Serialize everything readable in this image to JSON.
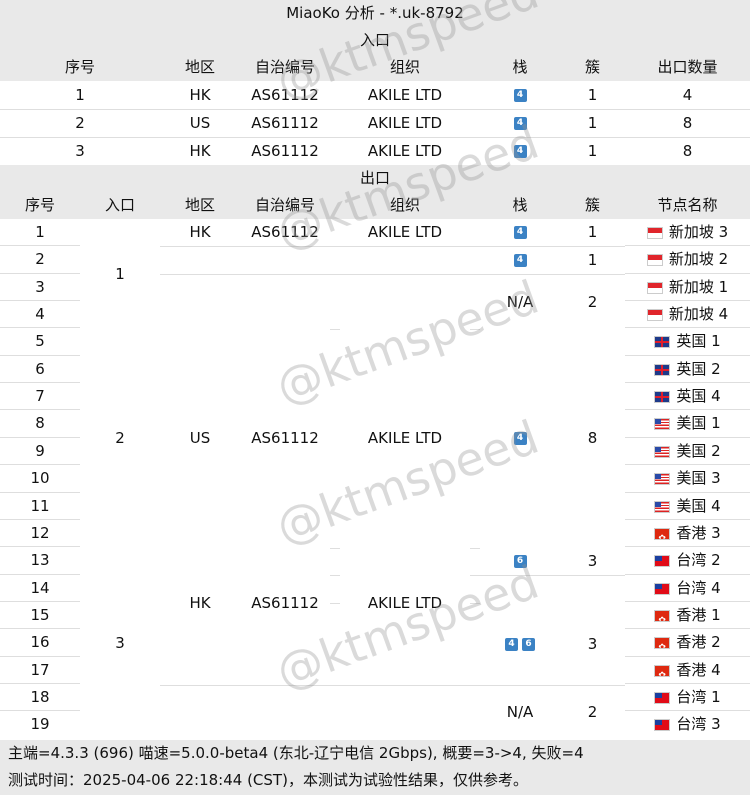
{
  "title": "MiaoKo 分析 - *.uk-8792",
  "entry_section": "入口",
  "exit_section": "出口",
  "entry_headers": [
    "序号",
    "地区",
    "自治编号",
    "组织",
    "栈",
    "簇",
    "出口数量"
  ],
  "entry_rows": [
    {
      "idx": "1",
      "region": "HK",
      "asn": "AS61112",
      "org": "AKILE LTD",
      "stack": "4",
      "cluster": "1",
      "count": "4"
    },
    {
      "idx": "2",
      "region": "US",
      "asn": "AS61112",
      "org": "AKILE LTD",
      "stack": "4",
      "cluster": "1",
      "count": "8"
    },
    {
      "idx": "3",
      "region": "HK",
      "asn": "AS61112",
      "org": "AKILE LTD",
      "stack": "4",
      "cluster": "1",
      "count": "8"
    }
  ],
  "exit_headers": [
    "序号",
    "入口",
    "地区",
    "自治编号",
    "组织",
    "栈",
    "簇",
    "节点名称"
  ],
  "exit_rows": [
    {
      "idx": "1",
      "node": "新加坡 3",
      "flag": "sg"
    },
    {
      "idx": "2",
      "node": "新加坡 2",
      "flag": "sg"
    },
    {
      "idx": "3",
      "node": "新加坡 1",
      "flag": "sg"
    },
    {
      "idx": "4",
      "node": "新加坡 4",
      "flag": "sg"
    },
    {
      "idx": "5",
      "node": "英国 1",
      "flag": "gb"
    },
    {
      "idx": "6",
      "node": "英国 2",
      "flag": "gb"
    },
    {
      "idx": "7",
      "node": "英国 4",
      "flag": "gb"
    },
    {
      "idx": "8",
      "node": "美国 1",
      "flag": "us"
    },
    {
      "idx": "9",
      "node": "美国 2",
      "flag": "us"
    },
    {
      "idx": "10",
      "node": "美国 3",
      "flag": "us"
    },
    {
      "idx": "11",
      "node": "美国 4",
      "flag": "us"
    },
    {
      "idx": "12",
      "node": "香港 3",
      "flag": "hk"
    },
    {
      "idx": "13",
      "node": "台湾 2",
      "flag": "tw"
    },
    {
      "idx": "14",
      "node": "台湾 4",
      "flag": "tw"
    },
    {
      "idx": "15",
      "node": "香港 1",
      "flag": "hk"
    },
    {
      "idx": "16",
      "node": "香港 2",
      "flag": "hk"
    },
    {
      "idx": "17",
      "node": "香港 4",
      "flag": "hk"
    },
    {
      "idx": "18",
      "node": "台湾 1",
      "flag": "tw"
    },
    {
      "idx": "19",
      "node": "台湾 3",
      "flag": "tw"
    }
  ],
  "exit_groups": {
    "entry_1": "1",
    "entry_2": "2",
    "entry_3": "3",
    "g1_region": "HK",
    "g1_asn": "AS61112",
    "g1_org": "AKILE LTD",
    "g1_stack": "4",
    "g1_cluster": "1",
    "g2_stack": "4",
    "g2_cluster": "1",
    "g3_stack": "N/A",
    "g3_cluster": "2",
    "g4_region": "US",
    "g4_asn": "AS61112",
    "g4_org": "AKILE LTD",
    "g4_stack": "4",
    "g4_cluster": "8",
    "g5_region": "HK",
    "g5_asn": "AS61112",
    "g5_org": "AKILE LTD",
    "g5_stack": "6",
    "g5_cluster": "3",
    "g6_stack_a": "4",
    "g6_stack_b": "6",
    "g6_cluster": "3",
    "g7_stack": "N/A",
    "g7_cluster": "2"
  },
  "footer_line1": "主端=4.3.3 (696) 喵速=5.0.0-beta4 (东北-辽宁电信 2Gbps), 概要=3->4, 失败=4",
  "footer_line2": "测试时间：2025-04-06 22:18:44 (CST)，本测试为试验性结果，仅供参考。",
  "watermark": "@ktmspeed",
  "colors": {
    "header_bg": "#e9e9e9",
    "badge": "#3b82c4"
  }
}
